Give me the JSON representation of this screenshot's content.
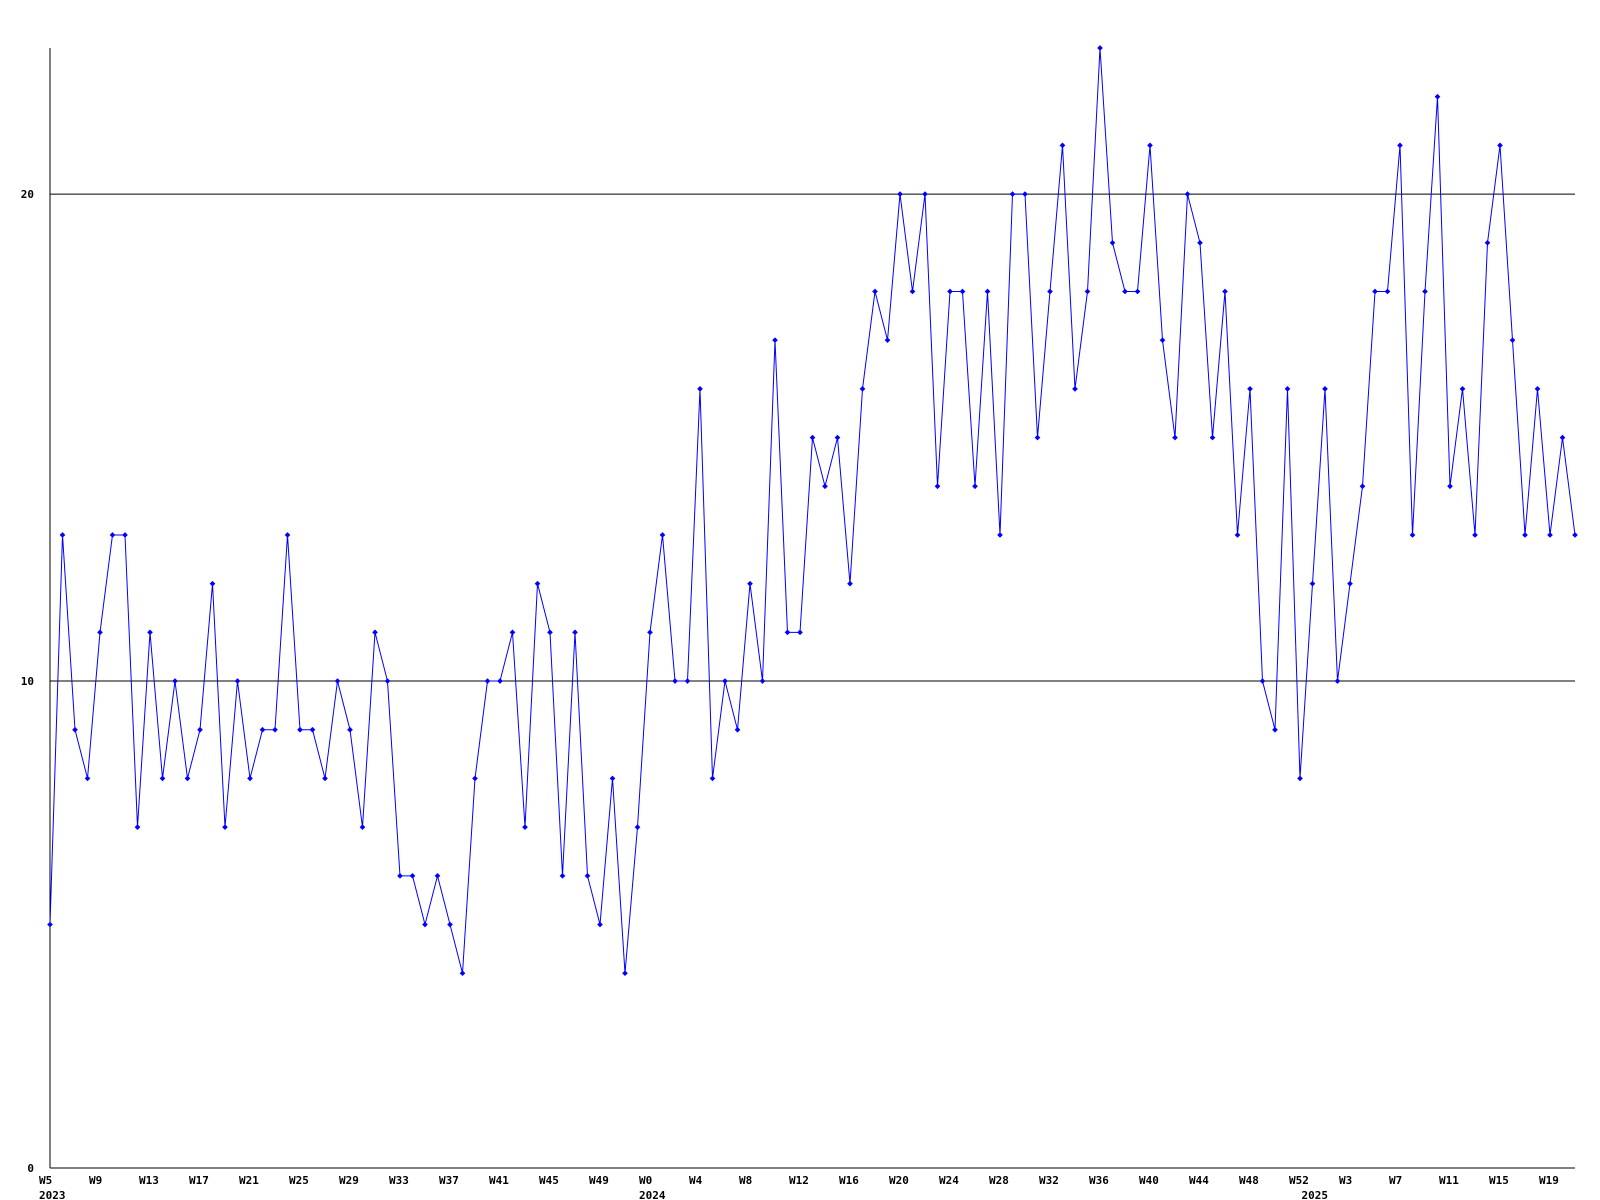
{
  "chart_data": {
    "type": "line",
    "title": "",
    "xlabel": "",
    "ylabel": "",
    "ylim": [
      0,
      23
    ],
    "y_ticks": [
      0,
      10,
      20
    ],
    "gridlines_y": [
      10,
      20
    ],
    "colors": {
      "line": "#0000ff",
      "marker": "#0000ff",
      "axis": "#000000",
      "grid": "#000000"
    },
    "x_tick_labels": [
      "W5",
      "W9",
      "W13",
      "W17",
      "W21",
      "W25",
      "W29",
      "W33",
      "W37",
      "W41",
      "W45",
      "W49",
      "W0",
      "W4",
      "W8",
      "W12",
      "W16",
      "W20",
      "W24",
      "W28",
      "W32",
      "W36",
      "W40",
      "W44",
      "W48",
      "W52",
      "W3",
      "W7",
      "W11",
      "W15",
      "W19"
    ],
    "x_tick_index": [
      0,
      4,
      8,
      12,
      16,
      20,
      24,
      28,
      32,
      36,
      40,
      44,
      48,
      52,
      56,
      60,
      64,
      68,
      72,
      76,
      80,
      84,
      88,
      92,
      96,
      100,
      104,
      108,
      112,
      116,
      120
    ],
    "year_labels": [
      {
        "label": "2023",
        "index": 0
      },
      {
        "label": "2024",
        "index": 48
      },
      {
        "label": "2025",
        "index": 101
      }
    ],
    "series": [
      {
        "values": [
          5,
          13,
          9,
          8,
          11,
          13,
          13,
          7,
          11,
          8,
          10,
          8,
          9,
          12,
          7,
          10,
          8,
          9,
          9,
          13,
          9,
          9,
          8,
          10,
          9,
          7,
          11,
          10,
          6,
          6,
          5,
          6,
          5,
          4,
          8,
          10,
          10,
          11,
          7,
          12,
          11,
          6,
          11,
          6,
          5,
          8,
          4,
          7,
          11,
          13,
          10,
          10,
          16,
          8,
          10,
          9,
          12,
          10,
          17,
          11,
          11,
          15,
          14,
          15,
          12,
          16,
          18,
          17,
          20,
          18,
          20,
          14,
          18,
          18,
          14,
          18,
          13,
          20,
          20,
          15,
          18,
          21,
          16,
          18,
          23,
          19,
          18,
          18,
          21,
          17,
          15,
          20,
          19,
          15,
          18,
          13,
          16,
          10,
          9,
          16,
          8,
          12,
          16,
          10,
          12,
          14,
          18,
          18,
          21,
          13,
          18,
          22,
          14,
          16,
          13,
          19,
          21,
          17,
          13,
          16,
          13,
          15,
          13
        ]
      }
    ]
  }
}
